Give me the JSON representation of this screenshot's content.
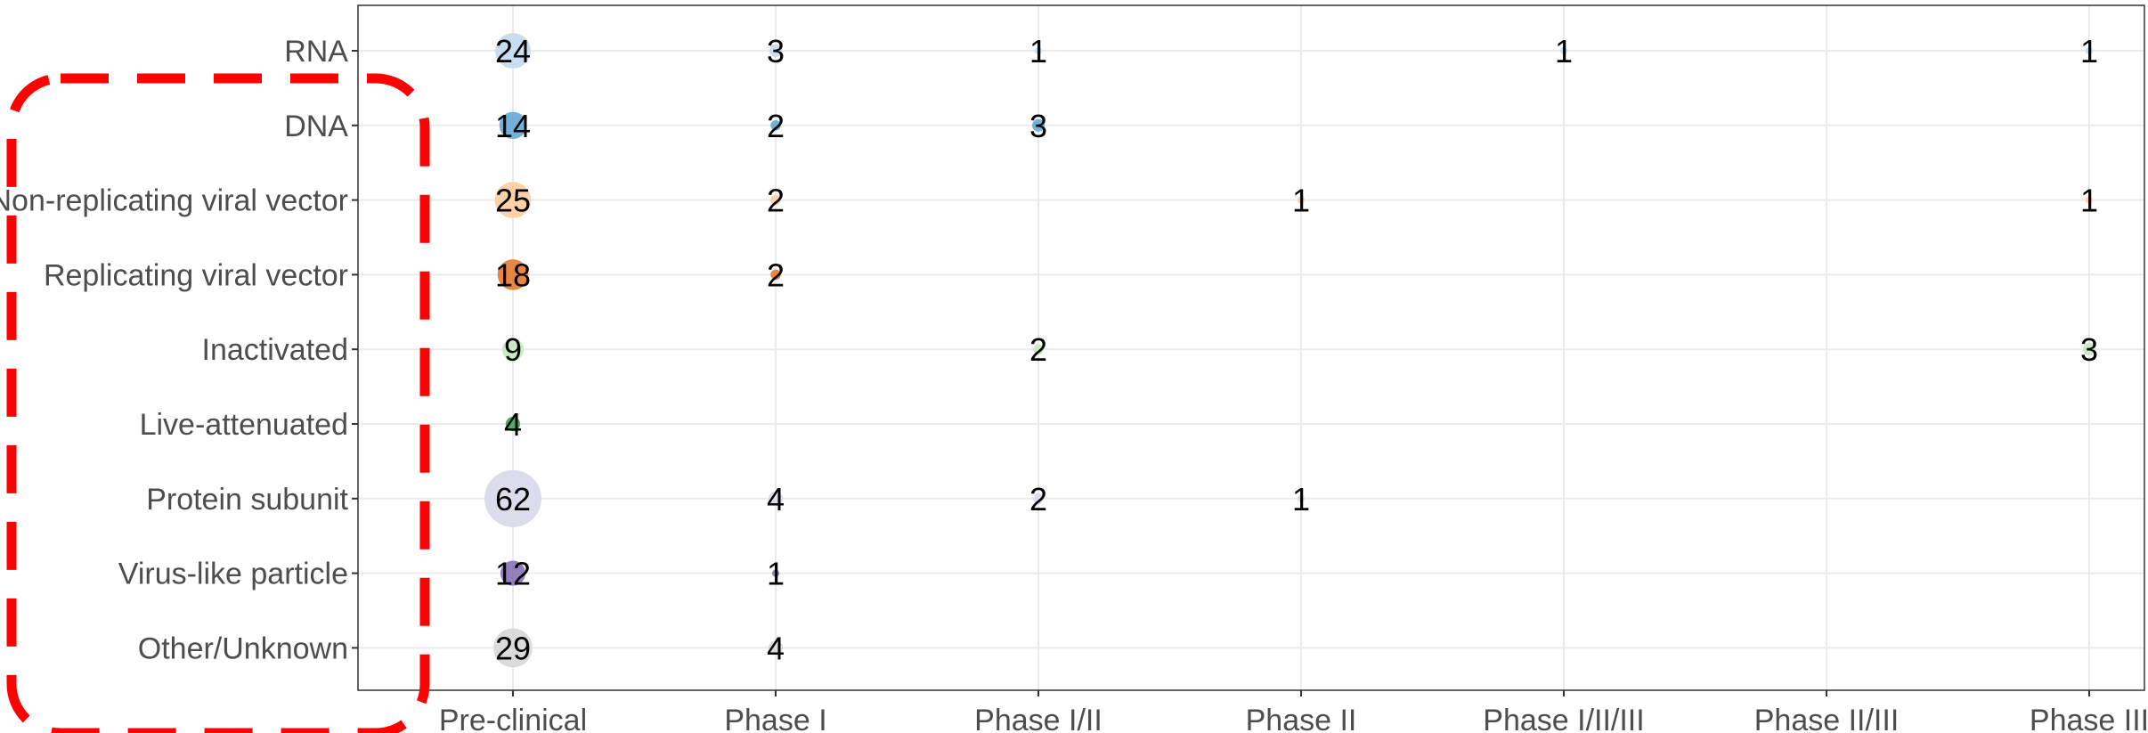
{
  "chart_data": {
    "type": "scatter",
    "categories": [
      "RNA",
      "DNA",
      "Non-replicating viral vector",
      "Replicating viral vector",
      "Inactivated",
      "Live-attenuated",
      "Protein subunit",
      "Virus-like particle",
      "Other/Unknown"
    ],
    "phases": [
      "Pre-clinical",
      "Phase I",
      "Phase I/II",
      "Phase II",
      "Phase I/II/III",
      "Phase II/III",
      "Phase III"
    ],
    "colors": [
      "#c6dbef",
      "#6baed6",
      "#fdd0a2",
      "#e6803a",
      "#c7e9c0",
      "#41ab5d",
      "#dadaeb",
      "#8c79b8",
      "#d9d9d9"
    ],
    "points": [
      {
        "category": "RNA",
        "phase": "Pre-clinical",
        "value": 24
      },
      {
        "category": "RNA",
        "phase": "Phase I",
        "value": 3
      },
      {
        "category": "RNA",
        "phase": "Phase I/II",
        "value": 1
      },
      {
        "category": "RNA",
        "phase": "Phase I/II/III",
        "value": 1
      },
      {
        "category": "RNA",
        "phase": "Phase III",
        "value": 1
      },
      {
        "category": "DNA",
        "phase": "Pre-clinical",
        "value": 14
      },
      {
        "category": "DNA",
        "phase": "Phase I",
        "value": 2
      },
      {
        "category": "DNA",
        "phase": "Phase I/II",
        "value": 3
      },
      {
        "category": "Non-replicating viral vector",
        "phase": "Pre-clinical",
        "value": 25
      },
      {
        "category": "Non-replicating viral vector",
        "phase": "Phase I",
        "value": 2
      },
      {
        "category": "Non-replicating viral vector",
        "phase": "Phase II",
        "value": 1
      },
      {
        "category": "Non-replicating viral vector",
        "phase": "Phase III",
        "value": 1
      },
      {
        "category": "Replicating viral vector",
        "phase": "Pre-clinical",
        "value": 18
      },
      {
        "category": "Replicating viral vector",
        "phase": "Phase I",
        "value": 2
      },
      {
        "category": "Inactivated",
        "phase": "Pre-clinical",
        "value": 9
      },
      {
        "category": "Inactivated",
        "phase": "Phase I/II",
        "value": 2
      },
      {
        "category": "Inactivated",
        "phase": "Phase III",
        "value": 3
      },
      {
        "category": "Live-attenuated",
        "phase": "Pre-clinical",
        "value": 4
      },
      {
        "category": "Protein subunit",
        "phase": "Pre-clinical",
        "value": 62
      },
      {
        "category": "Protein subunit",
        "phase": "Phase I",
        "value": 4
      },
      {
        "category": "Protein subunit",
        "phase": "Phase I/II",
        "value": 2
      },
      {
        "category": "Protein subunit",
        "phase": "Phase II",
        "value": 1
      },
      {
        "category": "Virus-like particle",
        "phase": "Pre-clinical",
        "value": 12
      },
      {
        "category": "Virus-like particle",
        "phase": "Phase I",
        "value": 1
      },
      {
        "category": "Other/Unknown",
        "phase": "Pre-clinical",
        "value": 29
      },
      {
        "category": "Other/Unknown",
        "phase": "Phase I",
        "value": 4
      }
    ],
    "title": "",
    "xlabel": "",
    "ylabel": "",
    "grid": true,
    "legend": "none",
    "highlight_color": "#ff0000"
  }
}
